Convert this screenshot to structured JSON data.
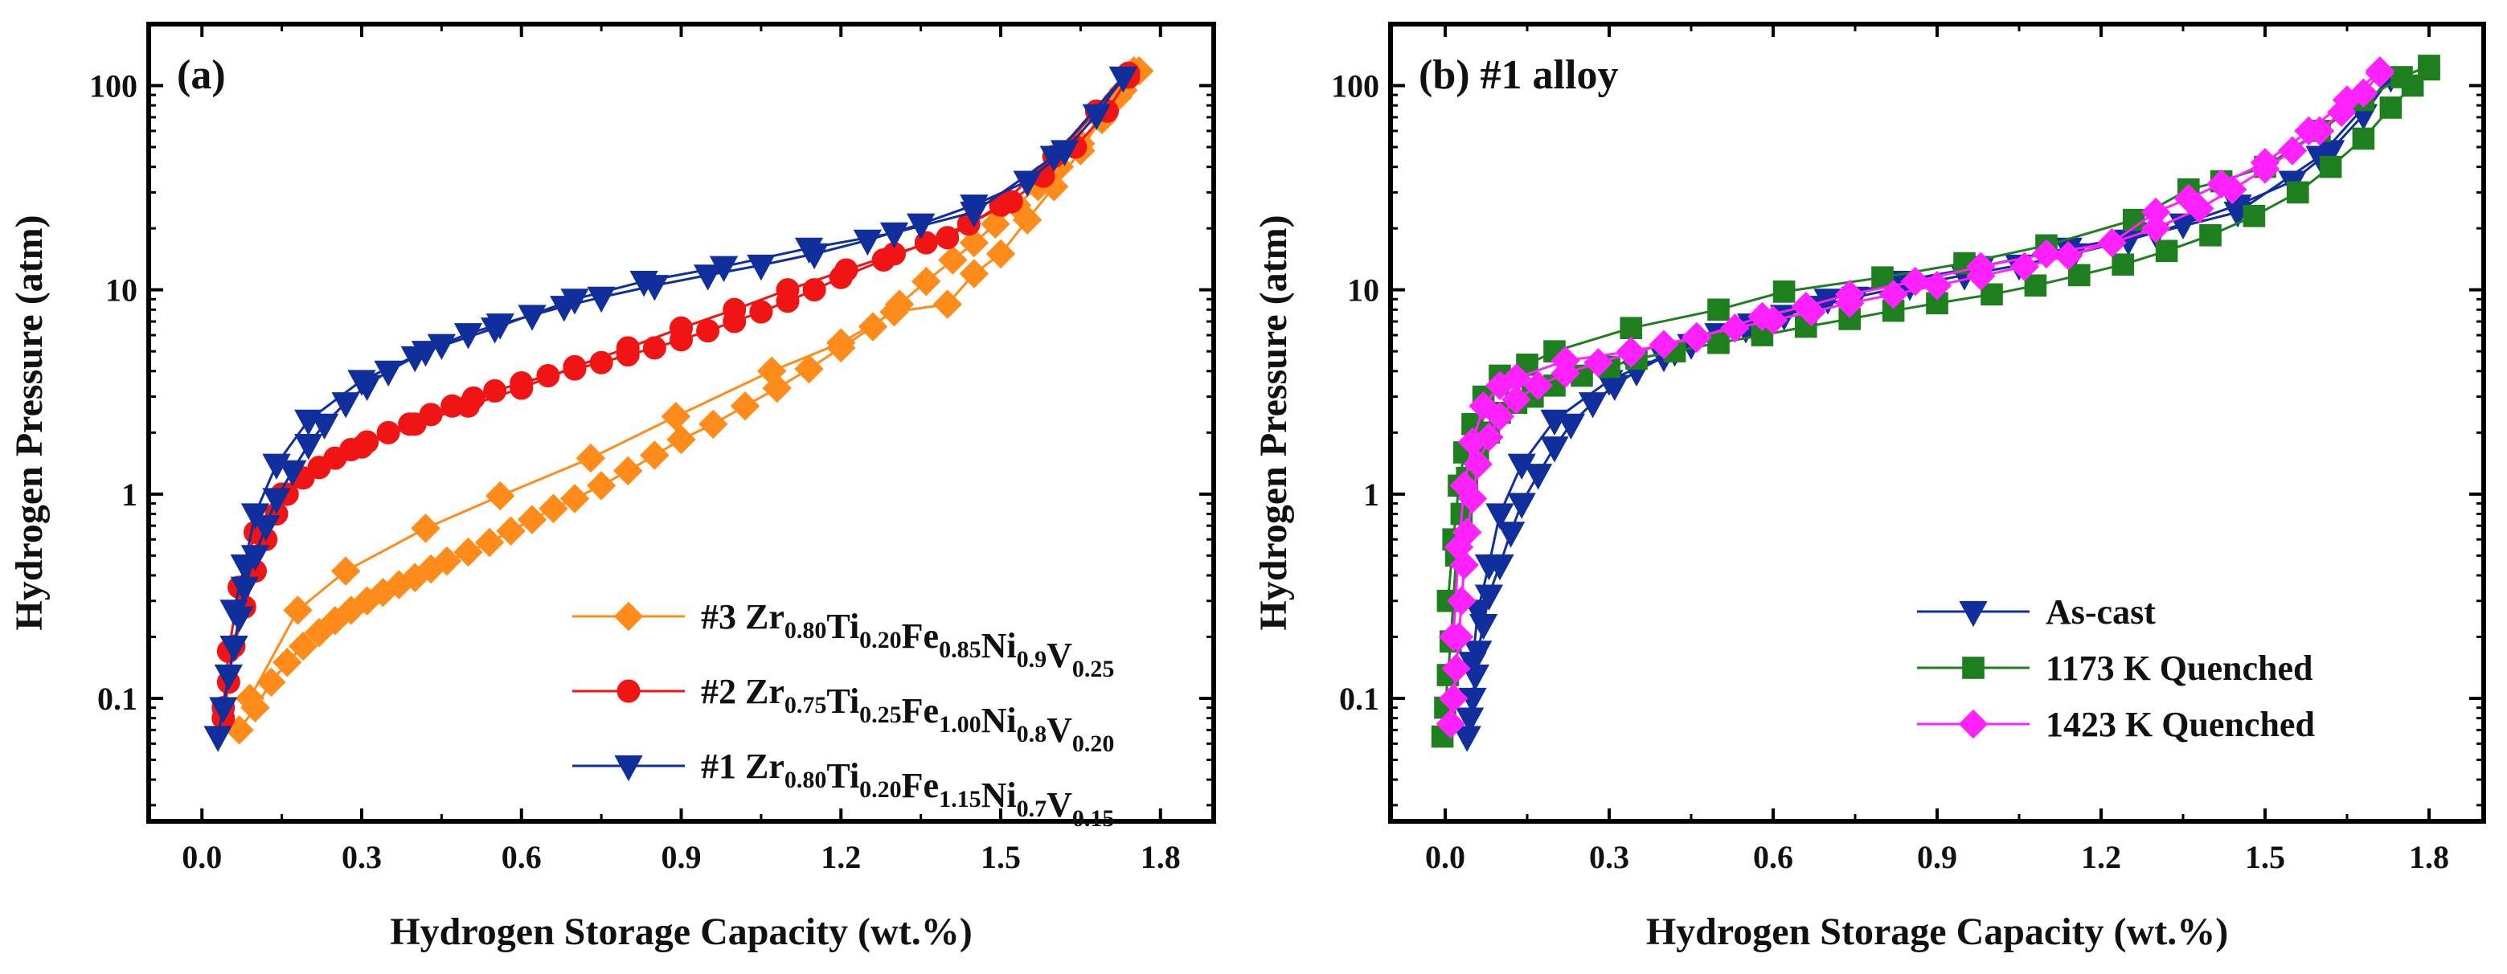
{
  "chart_data": [
    {
      "type": "line",
      "scale_y": "log",
      "panel_label": "(a)",
      "xlabel": "Hydrogen Storage Capacity (wt.%)",
      "ylabel": "Hydrogen Pressure (atm)",
      "xlim": [
        -0.1,
        1.9
      ],
      "ylim": [
        0.025,
        200
      ],
      "xticks": [
        "0.0",
        "0.3",
        "0.6",
        "0.9",
        "1.2",
        "1.5",
        "1.8"
      ],
      "xtick_values": [
        0,
        0.3,
        0.6,
        0.9,
        1.2,
        1.5,
        1.8
      ],
      "yticks": [
        "0.1",
        "1",
        "10",
        "100"
      ],
      "ytick_values": [
        0.1,
        1,
        10,
        100
      ],
      "legend_position": "bottom-right",
      "series": [
        {
          "name": "#3 Zr0.80Ti0.20Fe0.85Ni0.9V0.25",
          "legend_parts": [
            [
              "#3 Zr",
              ""
            ],
            [
              "0.80",
              "sub"
            ],
            [
              "Ti",
              ""
            ],
            [
              "0.20",
              "sub"
            ],
            [
              "Fe",
              ""
            ],
            [
              "0.85",
              "sub"
            ],
            [
              "Ni",
              ""
            ],
            [
              "0.9",
              "sub"
            ],
            [
              "V",
              ""
            ],
            [
              "0.25",
              "sub"
            ]
          ],
          "color": "#FF8C1A",
          "marker": "diamond",
          "absorption": {
            "x": [
              0.07,
              0.1,
              0.13,
              0.16,
              0.19,
              0.22,
              0.25,
              0.28,
              0.31,
              0.34,
              0.37,
              0.4,
              0.43,
              0.46,
              0.5,
              0.54,
              0.58,
              0.62,
              0.66,
              0.7,
              0.75,
              0.8,
              0.85,
              0.9,
              0.96,
              1.02,
              1.08,
              1.14,
              1.2,
              1.26,
              1.31,
              1.36,
              1.41,
              1.45,
              1.49,
              1.53,
              1.57,
              1.61,
              1.65,
              1.69,
              1.72,
              1.75
            ],
            "y": [
              0.07,
              0.09,
              0.12,
              0.15,
              0.18,
              0.21,
              0.24,
              0.27,
              0.3,
              0.33,
              0.36,
              0.39,
              0.43,
              0.47,
              0.52,
              0.58,
              0.66,
              0.75,
              0.85,
              0.95,
              1.1,
              1.3,
              1.55,
              1.85,
              2.2,
              2.7,
              3.3,
              4.1,
              5.2,
              6.6,
              8.5,
              11,
              14,
              17,
              21,
              26,
              32,
              40,
              52,
              68,
              88,
              118
            ]
          },
          "desorption": {
            "x": [
              1.76,
              1.73,
              1.69,
              1.65,
              1.6,
              1.55,
              1.5,
              1.45,
              1.4,
              1.3,
              1.2,
              1.07,
              0.89,
              0.73,
              0.56,
              0.42,
              0.27,
              0.18,
              0.09
            ],
            "y": [
              118,
              95,
              70,
              48,
              32,
              22,
              15,
              12,
              8.5,
              7.8,
              5.5,
              4.0,
              2.4,
              1.5,
              0.98,
              0.68,
              0.42,
              0.27,
              0.1
            ]
          }
        },
        {
          "name": "#2 Zr0.75Ti0.25Fe1.00Ni0.8V0.20",
          "legend_parts": [
            [
              "#2 Zr",
              ""
            ],
            [
              "0.75",
              "sub"
            ],
            [
              "Ti",
              ""
            ],
            [
              "0.25",
              "sub"
            ],
            [
              "Fe",
              ""
            ],
            [
              "1.00",
              "sub"
            ],
            [
              "Ni",
              ""
            ],
            [
              "0.8",
              "sub"
            ],
            [
              "V",
              ""
            ],
            [
              "0.20",
              "sub"
            ]
          ],
          "color": "#F01414",
          "marker": "circle",
          "absorption": {
            "x": [
              0.04,
              0.05,
              0.06,
              0.08,
              0.1,
              0.12,
              0.14,
              0.16,
              0.19,
              0.22,
              0.25,
              0.28,
              0.31,
              0.35,
              0.39,
              0.43,
              0.47,
              0.51,
              0.55,
              0.6,
              0.65,
              0.7,
              0.75,
              0.8,
              0.85,
              0.9,
              0.95,
              1.0,
              1.05,
              1.1,
              1.15,
              1.2,
              1.28,
              1.36,
              1.44,
              1.52,
              1.58,
              1.64,
              1.7,
              1.74
            ],
            "y": [
              0.08,
              0.12,
              0.18,
              0.28,
              0.42,
              0.6,
              0.8,
              1.0,
              1.2,
              1.35,
              1.5,
              1.65,
              1.8,
              2.0,
              2.2,
              2.45,
              2.7,
              2.95,
              3.2,
              3.5,
              3.8,
              4.1,
              4.4,
              4.8,
              5.2,
              5.7,
              6.3,
              7.0,
              7.8,
              8.8,
              10,
              11.5,
              14,
              17,
              21,
              27,
              36,
              50,
              75,
              110
            ]
          },
          "desorption": {
            "x": [
              1.74,
              1.68,
              1.6,
              1.5,
              1.4,
              1.3,
              1.21,
              1.1,
              1.0,
              0.9,
              0.8,
              0.7,
              0.6,
              0.5,
              0.4,
              0.3,
              0.22,
              0.15,
              0.1,
              0.07,
              0.05,
              0.04
            ],
            "y": [
              115,
              75,
              45,
              26,
              18,
              15,
              12.5,
              10,
              8,
              6.5,
              5.2,
              4.2,
              3.3,
              2.7,
              2.2,
              1.7,
              1.35,
              1.0,
              0.65,
              0.35,
              0.17,
              0.09
            ]
          }
        },
        {
          "name": "#1 Zr0.80Ti0.20Fe1.15Ni0.7V0.15",
          "legend_parts": [
            [
              "#1 Zr",
              ""
            ],
            [
              "0.80",
              "sub"
            ],
            [
              "Ti",
              ""
            ],
            [
              "0.20",
              "sub"
            ],
            [
              "Fe",
              ""
            ],
            [
              "1.15",
              "sub"
            ],
            [
              "Ni",
              ""
            ],
            [
              "0.7",
              "sub"
            ],
            [
              "V",
              ""
            ],
            [
              "0.15",
              "sub"
            ]
          ],
          "color": "#102E9C",
          "marker": "triangle-down",
          "absorption": {
            "x": [
              0.03,
              0.04,
              0.05,
              0.06,
              0.07,
              0.08,
              0.1,
              0.12,
              0.14,
              0.17,
              0.2,
              0.23,
              0.27,
              0.31,
              0.35,
              0.4,
              0.45,
              0.5,
              0.56,
              0.62,
              0.68,
              0.75,
              0.85,
              0.95,
              1.05,
              1.15,
              1.25,
              1.35,
              1.45,
              1.55,
              1.62,
              1.68,
              1.73
            ],
            "y": [
              0.065,
              0.09,
              0.13,
              0.18,
              0.25,
              0.35,
              0.5,
              0.7,
              0.95,
              1.3,
              1.75,
              2.2,
              2.8,
              3.4,
              4.0,
              4.7,
              5.4,
              6.1,
              6.8,
              7.5,
              8.3,
              9.2,
              10.5,
              11.8,
              13.2,
              15,
              17.5,
              21,
              26,
              34,
              48,
              72,
              110
            ]
          },
          "desorption": {
            "x": [
              1.73,
              1.6,
              1.45,
              1.3,
              1.14,
              0.98,
              0.83,
              0.7,
              0.55,
              0.42,
              0.3,
              0.2,
              0.14,
              0.1,
              0.08,
              0.06
            ],
            "y": [
              110,
              45,
              24,
              19,
              16,
              13,
              11,
              9.0,
              6.5,
              5.0,
              3.6,
              2.3,
              1.4,
              0.8,
              0.45,
              0.27
            ]
          }
        }
      ]
    },
    {
      "type": "line",
      "scale_y": "log",
      "panel_label": "(b) #1 alloy",
      "xlabel": "Hydrogen Storage Capacity (wt.%)",
      "ylabel": "Hydrogen Pressure (atm)",
      "xlim": [
        -0.1,
        1.9
      ],
      "ylim": [
        0.025,
        200
      ],
      "xticks": [
        "0.0",
        "0.3",
        "0.6",
        "0.9",
        "1.2",
        "1.5",
        "1.8"
      ],
      "xtick_values": [
        0,
        0.3,
        0.6,
        0.9,
        1.2,
        1.5,
        1.8
      ],
      "yticks": [
        "0.1",
        "1",
        "10",
        "100"
      ],
      "ytick_values": [
        0.1,
        1,
        10,
        100
      ],
      "legend_position": "bottom-right",
      "series": [
        {
          "name": "As-cast",
          "legend_parts": [
            [
              "As-cast",
              ""
            ]
          ],
          "color": "#102E9C",
          "marker": "triangle-down",
          "absorption": {
            "x": [
              0.04,
              0.045,
              0.05,
              0.055,
              0.06,
              0.07,
              0.08,
              0.1,
              0.12,
              0.14,
              0.17,
              0.2,
              0.23,
              0.27,
              0.31,
              0.35,
              0.4,
              0.45,
              0.5,
              0.56,
              0.62,
              0.68,
              0.75,
              0.85,
              0.95,
              1.05,
              1.15,
              1.25,
              1.35,
              1.45,
              1.55,
              1.62,
              1.68,
              1.73
            ],
            "y": [
              0.065,
              0.08,
              0.1,
              0.13,
              0.17,
              0.23,
              0.32,
              0.45,
              0.65,
              0.9,
              1.25,
              1.7,
              2.2,
              2.8,
              3.4,
              4.0,
              4.7,
              5.4,
              6.1,
              6.8,
              7.5,
              8.3,
              9.2,
              10.5,
              11.8,
              13.2,
              15,
              17.5,
              21,
              26,
              34,
              48,
              72,
              110
            ]
          },
          "desorption": {
            "x": [
              1.73,
              1.6,
              1.45,
              1.3,
              1.14,
              0.98,
              0.83,
              0.7,
              0.55,
              0.42,
              0.3,
              0.2,
              0.14,
              0.1,
              0.08,
              0.06,
              0.05
            ],
            "y": [
              110,
              45,
              24,
              19,
              16,
              13,
              11,
              9.0,
              6.5,
              5.0,
              3.6,
              2.3,
              1.4,
              0.8,
              0.45,
              0.27,
              0.15
            ]
          }
        },
        {
          "name": "1173 K Quenched",
          "legend_parts": [
            [
              "1173 K Quenched",
              ""
            ]
          ],
          "color": "#1E7F1E",
          "marker": "square",
          "absorption": {
            "x": [
              -0.005,
              0.0,
              0.005,
              0.01,
              0.015,
              0.02,
              0.03,
              0.04,
              0.06,
              0.08,
              0.1,
              0.13,
              0.16,
              0.2,
              0.25,
              0.3,
              0.35,
              0.42,
              0.5,
              0.58,
              0.66,
              0.74,
              0.82,
              0.9,
              1.0,
              1.08,
              1.16,
              1.24,
              1.32,
              1.4,
              1.48,
              1.56,
              1.62,
              1.68,
              1.73,
              1.77,
              1.8
            ],
            "y": [
              0.065,
              0.09,
              0.13,
              0.19,
              0.3,
              0.5,
              0.8,
              1.2,
              1.6,
              2.0,
              2.5,
              2.8,
              3.0,
              3.4,
              3.8,
              4.2,
              4.6,
              5.0,
              5.5,
              6.0,
              6.6,
              7.2,
              7.9,
              8.6,
              9.5,
              10.5,
              11.8,
              13.3,
              15.5,
              18.5,
              23,
              30,
              40,
              55,
              78,
              100,
              120
            ]
          },
          "desorption": {
            "x": [
              1.8,
              1.75,
              1.68,
              1.6,
              1.5,
              1.42,
              1.36,
              1.26,
              1.1,
              0.95,
              0.8,
              0.62,
              0.5,
              0.34,
              0.2,
              0.15,
              0.1,
              0.07,
              0.05,
              0.035,
              0.025,
              0.015,
              0.005
            ],
            "y": [
              125,
              110,
              85,
              60,
              40,
              34,
              31,
              22,
              16.5,
              13.5,
              11.5,
              9.8,
              8.0,
              6.5,
              5.0,
              4.3,
              3.8,
              3.0,
              2.2,
              1.6,
              1.1,
              0.6,
              0.3
            ]
          }
        },
        {
          "name": "1423 K Quenched",
          "legend_parts": [
            [
              "1423 K Quenched",
              ""
            ]
          ],
          "color": "#FF22FF",
          "marker": "diamond",
          "absorption": {
            "x": [
              0.01,
              0.015,
              0.02,
              0.025,
              0.03,
              0.035,
              0.04,
              0.05,
              0.06,
              0.08,
              0.1,
              0.13,
              0.17,
              0.22,
              0.28,
              0.34,
              0.4,
              0.46,
              0.53,
              0.6,
              0.67,
              0.74,
              0.82,
              0.9,
              0.98,
              1.06,
              1.14,
              1.22,
              1.3,
              1.38,
              1.44,
              1.5,
              1.55,
              1.6,
              1.64,
              1.68,
              1.71
            ],
            "y": [
              0.075,
              0.1,
              0.14,
              0.2,
              0.3,
              0.45,
              0.65,
              0.95,
              1.4,
              1.9,
              2.4,
              2.9,
              3.4,
              3.9,
              4.4,
              4.9,
              5.4,
              5.9,
              6.5,
              7.1,
              7.8,
              8.6,
              9.5,
              10.5,
              11.7,
              13,
              14.7,
              17,
              20,
              25,
              31,
              39,
              48,
              60,
              74,
              92,
              115
            ]
          },
          "desorption": {
            "x": [
              1.71,
              1.65,
              1.58,
              1.5,
              1.42,
              1.36,
              1.3,
              1.22,
              1.1,
              0.98,
              0.86,
              0.74,
              0.66,
              0.58,
              0.46,
              0.34,
              0.22,
              0.13,
              0.1,
              0.07,
              0.05,
              0.035,
              0.025,
              0.015
            ],
            "y": [
              118,
              85,
              60,
              42,
              33,
              28,
              24,
              17,
              15,
              13,
              11,
              9.5,
              8.3,
              7.4,
              5.8,
              5.0,
              4.5,
              3.7,
              3.4,
              2.7,
              1.8,
              1.1,
              0.55,
              0.2
            ]
          }
        }
      ]
    }
  ]
}
